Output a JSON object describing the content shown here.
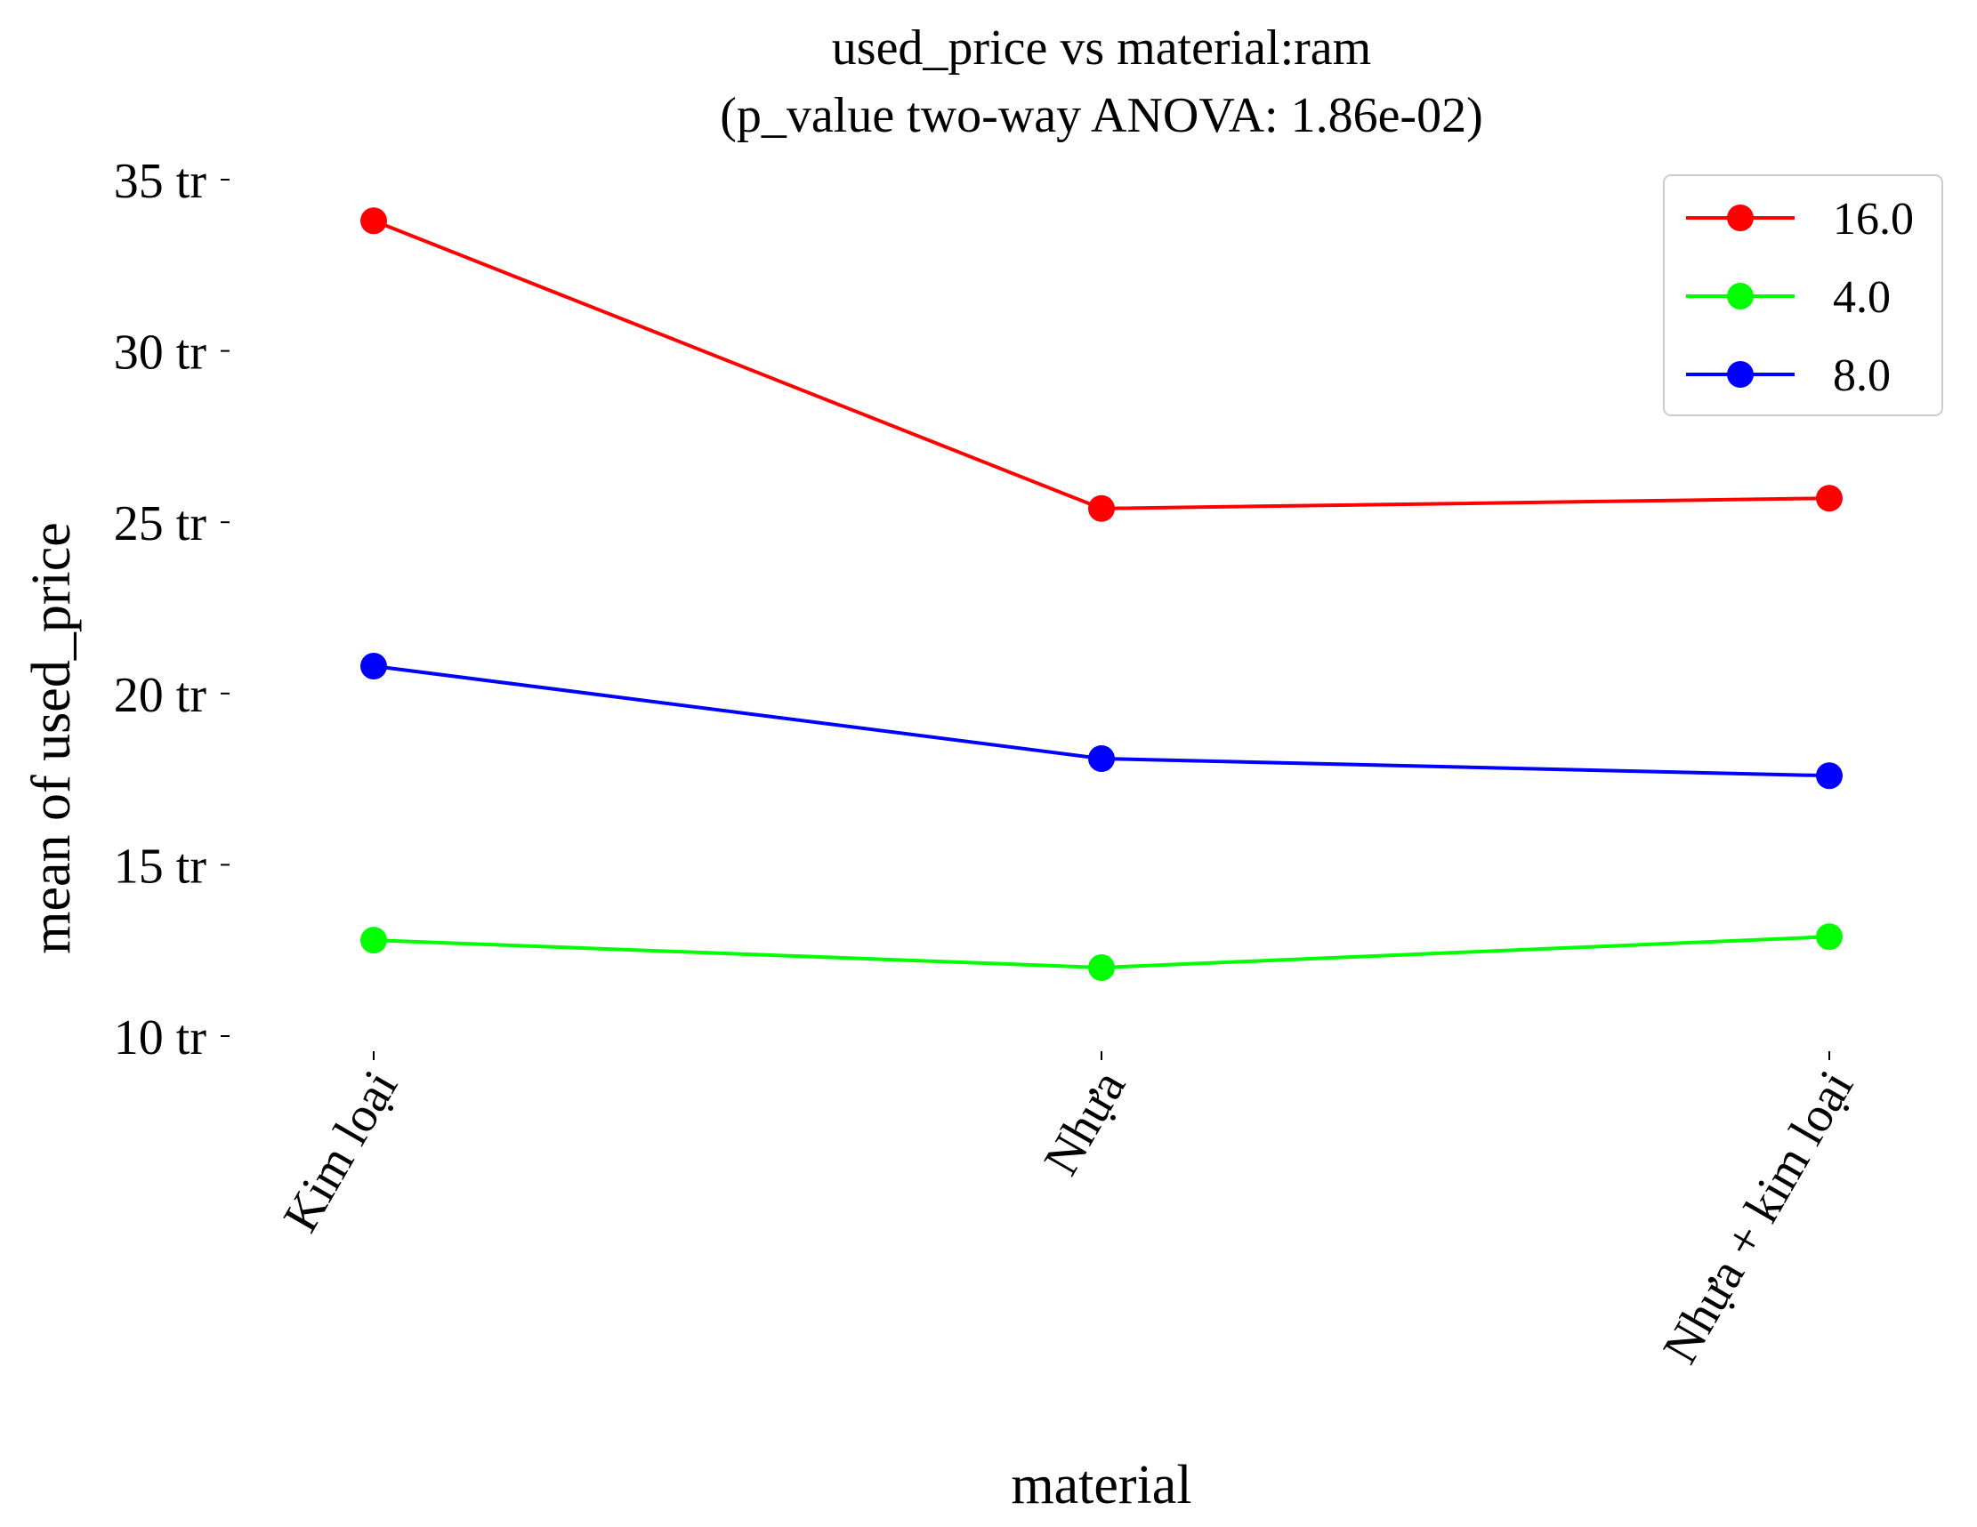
{
  "chart_data": {
    "type": "line",
    "title_line1": "used_price vs material:ram",
    "title_line2": "(p_value two-way ANOVA: 1.86e-02)",
    "xlabel": "material",
    "ylabel": "mean of used_price",
    "categories": [
      "Kim loại",
      "Nhựa",
      "Nhựa + kim loại"
    ],
    "ylim": [
      10,
      35
    ],
    "yticks": [
      10,
      15,
      20,
      25,
      30,
      35
    ],
    "ytick_labels": [
      "10 tr",
      "15 tr",
      "20 tr",
      "25 tr",
      "30 tr",
      "35 tr"
    ],
    "grid": false,
    "legend_position": "top-right",
    "series": [
      {
        "name": "16.0",
        "color": "#ff0000",
        "values": [
          33.8,
          25.4,
          25.7
        ]
      },
      {
        "name": "4.0",
        "color": "#00ff00",
        "values": [
          12.8,
          12.0,
          12.9
        ]
      },
      {
        "name": "8.0",
        "color": "#0000ff",
        "values": [
          20.8,
          18.1,
          17.6
        ]
      }
    ]
  }
}
